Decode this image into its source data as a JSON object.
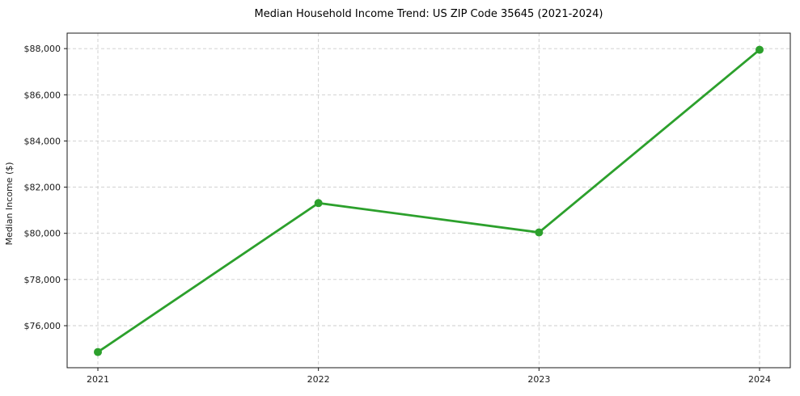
{
  "figure": {
    "background": "#ffffff"
  },
  "chart_data": {
    "type": "line",
    "title": "Median Household Income Trend: US ZIP Code 35645 (2021-2024)",
    "xlabel": "",
    "ylabel": "Median Income ($)",
    "categories": [
      "2021",
      "2022",
      "2023",
      "2024"
    ],
    "series": [
      {
        "values": [
          74860,
          81310,
          80040,
          87950
        ],
        "color": "#2ca02c",
        "marker": "circle"
      }
    ],
    "ylim": [
      74180,
      88670
    ],
    "y_ticks": [
      {
        "value": 76000,
        "label": "$76,000"
      },
      {
        "value": 78000,
        "label": "$78,000"
      },
      {
        "value": 80000,
        "label": "$80,000"
      },
      {
        "value": 82000,
        "label": "$82,000"
      },
      {
        "value": 84000,
        "label": "$84,000"
      },
      {
        "value": 86000,
        "label": "$86,000"
      },
      {
        "value": 88000,
        "label": "$88,000"
      }
    ],
    "grid": true,
    "grid_style": "dashed",
    "grid_color": "#cccccc",
    "axis_color": "#1a1a1a",
    "tick_label_color": "#1a1a1a",
    "legend": "none"
  }
}
